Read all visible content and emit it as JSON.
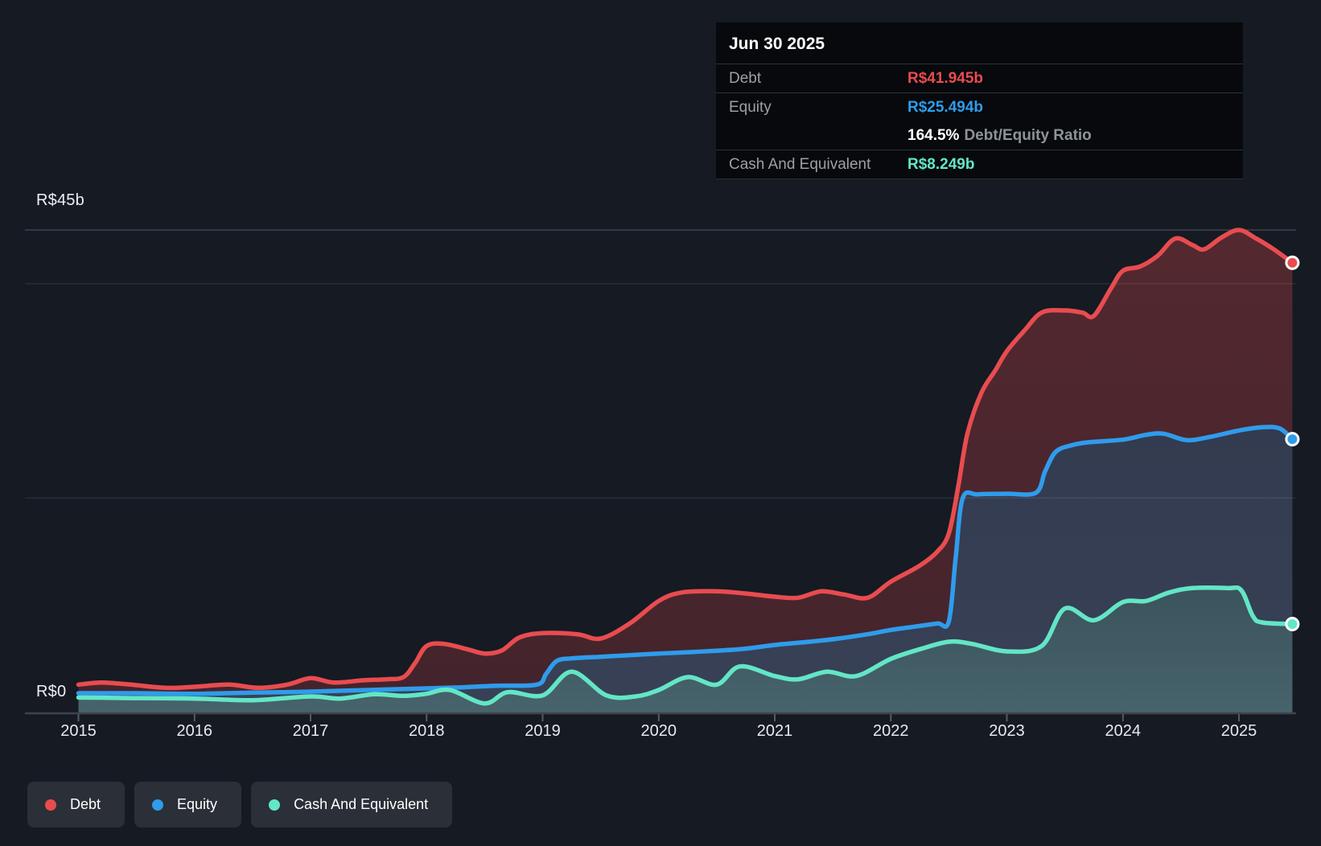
{
  "y_axis": {
    "top_label": "R$45b",
    "zero_label": "R$0"
  },
  "x_axis": {
    "years": [
      "2015",
      "2016",
      "2017",
      "2018",
      "2019",
      "2020",
      "2021",
      "2022",
      "2023",
      "2024",
      "2025"
    ]
  },
  "tooltip": {
    "date": "Jun 30 2025",
    "rows": [
      {
        "label": "Debt",
        "value": "R$41.945b",
        "color": "#e84c4f"
      },
      {
        "label": "Equity",
        "value": "R$25.494b",
        "color": "#2f9ceb"
      },
      {
        "label": "Cash And Equivalent",
        "value": "R$8.249b",
        "color": "#63e6c6"
      }
    ],
    "ratio": {
      "value": "164.5%",
      "suffix": "Debt/Equity Ratio"
    }
  },
  "legend": [
    {
      "label": "Debt",
      "color": "#e84c4f"
    },
    {
      "label": "Equity",
      "color": "#2f9ceb"
    },
    {
      "label": "Cash And Equivalent",
      "color": "#63e6c6"
    }
  ],
  "chart_data": {
    "type": "area",
    "title": "Debt, Equity and Cash history",
    "xlim": [
      2015,
      2025.46
    ],
    "ylim": [
      0,
      45
    ],
    "currency_unit": "R$ billions",
    "gridlines_b": [
      45,
      40,
      20,
      0
    ],
    "legend_position": "bottom-left",
    "series": [
      {
        "name": "Debt",
        "color": "#e84c4f",
        "fill_top": "rgba(230,72,76,0.30)",
        "fill_bottom": "rgba(230,72,76,0.22)",
        "last_value_label": "R$41.945b",
        "points": [
          [
            2015.0,
            2.6
          ],
          [
            2015.2,
            2.8
          ],
          [
            2015.45,
            2.6
          ],
          [
            2015.75,
            2.3
          ],
          [
            2016.0,
            2.4
          ],
          [
            2016.3,
            2.6
          ],
          [
            2016.55,
            2.3
          ],
          [
            2016.8,
            2.6
          ],
          [
            2017.0,
            3.2
          ],
          [
            2017.2,
            2.8
          ],
          [
            2017.45,
            3.0
          ],
          [
            2017.65,
            3.1
          ],
          [
            2017.8,
            3.3
          ],
          [
            2017.9,
            4.6
          ],
          [
            2018.0,
            6.2
          ],
          [
            2018.15,
            6.4
          ],
          [
            2018.35,
            5.9
          ],
          [
            2018.5,
            5.5
          ],
          [
            2018.65,
            5.8
          ],
          [
            2018.8,
            7.0
          ],
          [
            2019.0,
            7.4
          ],
          [
            2019.3,
            7.3
          ],
          [
            2019.5,
            6.9
          ],
          [
            2019.75,
            8.3
          ],
          [
            2020.0,
            10.4
          ],
          [
            2020.2,
            11.2
          ],
          [
            2020.5,
            11.3
          ],
          [
            2020.75,
            11.1
          ],
          [
            2021.0,
            10.8
          ],
          [
            2021.2,
            10.7
          ],
          [
            2021.4,
            11.3
          ],
          [
            2021.6,
            11.0
          ],
          [
            2021.8,
            10.7
          ],
          [
            2022.0,
            12.2
          ],
          [
            2022.25,
            13.7
          ],
          [
            2022.4,
            15.0
          ],
          [
            2022.5,
            16.7
          ],
          [
            2022.58,
            21.0
          ],
          [
            2022.66,
            26.0
          ],
          [
            2022.78,
            29.8
          ],
          [
            2022.9,
            31.9
          ],
          [
            2023.0,
            33.7
          ],
          [
            2023.15,
            35.6
          ],
          [
            2023.3,
            37.3
          ],
          [
            2023.5,
            37.5
          ],
          [
            2023.65,
            37.3
          ],
          [
            2023.75,
            37.0
          ],
          [
            2023.9,
            39.6
          ],
          [
            2024.0,
            41.2
          ],
          [
            2024.15,
            41.6
          ],
          [
            2024.3,
            42.6
          ],
          [
            2024.45,
            44.2
          ],
          [
            2024.6,
            43.6
          ],
          [
            2024.7,
            43.2
          ],
          [
            2024.85,
            44.3
          ],
          [
            2025.0,
            45.0
          ],
          [
            2025.15,
            44.2
          ],
          [
            2025.3,
            43.2
          ],
          [
            2025.46,
            41.945
          ]
        ]
      },
      {
        "name": "Equity",
        "color": "#2f9ceb",
        "fill_top": "#333b50",
        "fill_bottom": "#384156",
        "last_value_label": "R$25.494b",
        "points": [
          [
            2015.0,
            1.8
          ],
          [
            2015.5,
            1.8
          ],
          [
            2016.0,
            1.75
          ],
          [
            2016.5,
            1.85
          ],
          [
            2017.0,
            1.95
          ],
          [
            2017.5,
            2.1
          ],
          [
            2018.0,
            2.25
          ],
          [
            2018.3,
            2.35
          ],
          [
            2018.6,
            2.5
          ],
          [
            2018.95,
            2.6
          ],
          [
            2019.03,
            3.6
          ],
          [
            2019.12,
            4.8
          ],
          [
            2019.25,
            5.05
          ],
          [
            2019.5,
            5.2
          ],
          [
            2019.75,
            5.35
          ],
          [
            2020.0,
            5.5
          ],
          [
            2020.3,
            5.65
          ],
          [
            2020.7,
            5.9
          ],
          [
            2021.0,
            6.3
          ],
          [
            2021.3,
            6.6
          ],
          [
            2021.55,
            6.9
          ],
          [
            2021.8,
            7.3
          ],
          [
            2022.0,
            7.7
          ],
          [
            2022.2,
            8.0
          ],
          [
            2022.4,
            8.3
          ],
          [
            2022.5,
            8.5
          ],
          [
            2022.56,
            14.5
          ],
          [
            2022.62,
            20.0
          ],
          [
            2022.75,
            20.35
          ],
          [
            2023.0,
            20.4
          ],
          [
            2023.25,
            20.5
          ],
          [
            2023.33,
            22.5
          ],
          [
            2023.42,
            24.3
          ],
          [
            2023.55,
            24.9
          ],
          [
            2023.7,
            25.2
          ],
          [
            2024.0,
            25.45
          ],
          [
            2024.2,
            25.9
          ],
          [
            2024.35,
            26.0
          ],
          [
            2024.55,
            25.4
          ],
          [
            2024.75,
            25.7
          ],
          [
            2025.0,
            26.3
          ],
          [
            2025.2,
            26.6
          ],
          [
            2025.35,
            26.5
          ],
          [
            2025.46,
            25.494
          ]
        ]
      },
      {
        "name": "Cash And Equivalent",
        "color": "#63e6c6",
        "fill_top": "#3b535c",
        "fill_bottom": "#47636c",
        "last_value_label": "R$8.249b",
        "points": [
          [
            2015.0,
            1.4
          ],
          [
            2015.4,
            1.35
          ],
          [
            2016.0,
            1.3
          ],
          [
            2016.5,
            1.15
          ],
          [
            2017.0,
            1.5
          ],
          [
            2017.25,
            1.3
          ],
          [
            2017.55,
            1.7
          ],
          [
            2017.8,
            1.55
          ],
          [
            2018.0,
            1.75
          ],
          [
            2018.2,
            2.1
          ],
          [
            2018.5,
            0.85
          ],
          [
            2018.7,
            1.9
          ],
          [
            2019.0,
            1.6
          ],
          [
            2019.25,
            3.8
          ],
          [
            2019.55,
            1.6
          ],
          [
            2019.8,
            1.5
          ],
          [
            2020.0,
            2.1
          ],
          [
            2020.25,
            3.3
          ],
          [
            2020.5,
            2.6
          ],
          [
            2020.7,
            4.3
          ],
          [
            2021.0,
            3.4
          ],
          [
            2021.2,
            3.1
          ],
          [
            2021.45,
            3.8
          ],
          [
            2021.7,
            3.4
          ],
          [
            2022.0,
            5.0
          ],
          [
            2022.25,
            5.9
          ],
          [
            2022.5,
            6.6
          ],
          [
            2022.7,
            6.4
          ],
          [
            2023.0,
            5.7
          ],
          [
            2023.3,
            6.2
          ],
          [
            2023.5,
            9.7
          ],
          [
            2023.75,
            8.6
          ],
          [
            2024.0,
            10.3
          ],
          [
            2024.2,
            10.4
          ],
          [
            2024.4,
            11.2
          ],
          [
            2024.6,
            11.6
          ],
          [
            2024.9,
            11.6
          ],
          [
            2025.02,
            11.4
          ],
          [
            2025.12,
            9.0
          ],
          [
            2025.2,
            8.4
          ],
          [
            2025.46,
            8.249
          ]
        ]
      }
    ]
  }
}
